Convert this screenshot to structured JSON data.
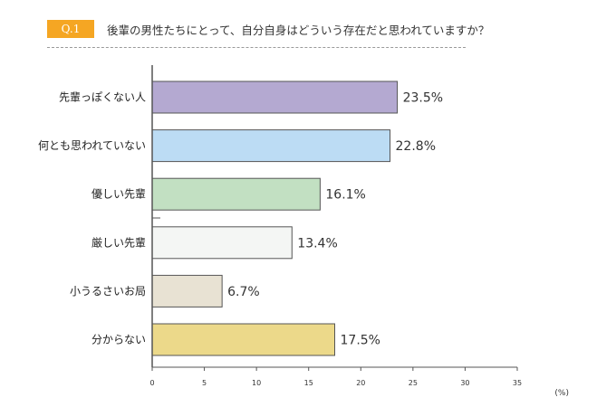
{
  "question": {
    "badge": "Q.1",
    "text": "後輩の男性たちにとって、自分自身はどういう存在だと思われていますか？"
  },
  "chart_data": {
    "type": "bar",
    "orientation": "horizontal",
    "categories": [
      "先輩っぽくない人",
      "何とも思われていない",
      "優しい先輩",
      "厳しい先輩",
      "小うるさいお局",
      "分からない"
    ],
    "values": [
      23.5,
      22.8,
      16.1,
      13.4,
      6.7,
      17.5
    ],
    "value_labels": [
      "23.5%",
      "22.8%",
      "16.1%",
      "13.4%",
      "6.7%",
      "17.5%"
    ],
    "colors": [
      "#b4a9d1",
      "#bcdcf4",
      "#c2e0c2",
      "#f4f6f4",
      "#e8e2d3",
      "#ecd98a"
    ],
    "x_ticks": [
      "0",
      "5",
      "10",
      "15",
      "20",
      "25",
      "30",
      "35"
    ],
    "x_tick_values": [
      0,
      5,
      10,
      15,
      20,
      25,
      30,
      35
    ],
    "xlim": [
      0,
      35
    ],
    "unit": "(%)",
    "grid": false
  }
}
